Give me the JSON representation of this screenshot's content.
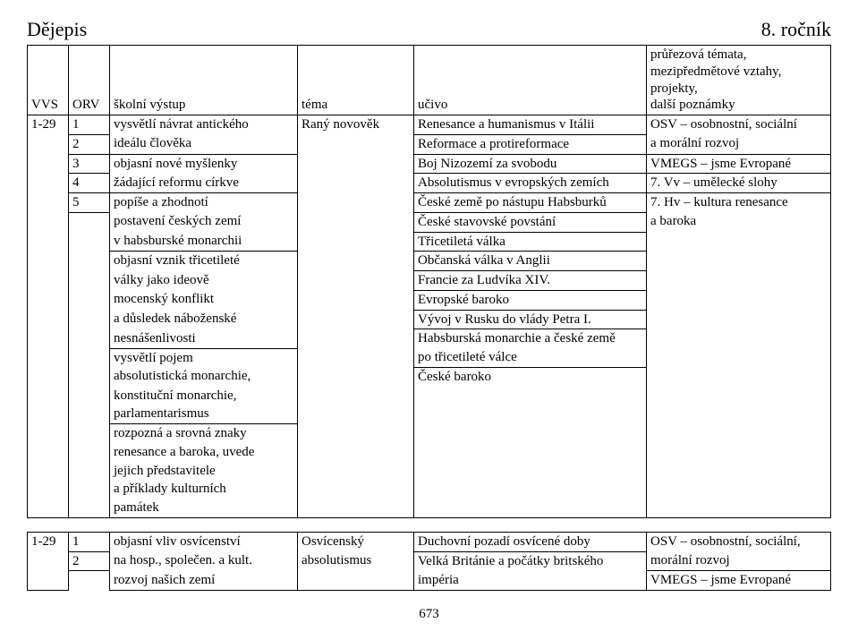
{
  "page": {
    "title_left": "Dějepis",
    "title_right": "8. ročník",
    "page_number": "673"
  },
  "head": {
    "vvs": "VVS",
    "orv": "ORV",
    "vystup": "školní výstup",
    "tema": "téma",
    "ucivo": "učivo",
    "pozn_lines": [
      "průřezová témata,",
      "mezipředmětové vztahy,",
      "projekty,",
      "další poznámky"
    ]
  },
  "s1": {
    "vvs0": "1-29",
    "orv": {
      "r0": "1",
      "r1": "2",
      "r2": "3",
      "r3": "4",
      "r4": "5"
    },
    "vystup": {
      "r0": "vysvětlí návrat antického",
      "r1": "ideálu člověka",
      "r2": "objasní nové myšlenky",
      "r3": "žádající reformu církve",
      "r4": "popíše a zhodnotí",
      "r5": "postavení českých zemí",
      "r6": "v habsburské monarchii",
      "r7": "objasní vznik třicetileté",
      "r8": "války jako ideově",
      "r9": "mocenský konflikt",
      "r10": "a důsledek náboženské",
      "r11": "nesnášenlivosti",
      "r12": "vysvětlí pojem",
      "r13": "absolutistická monarchie,",
      "r14": "konstituční monarchie,",
      "r15": "parlamentarismus",
      "r16": "rozpozná a srovná znaky",
      "r17": "renesance a baroka, uvede",
      "r18": "jejich představitele",
      "r19": "a příklady kulturních",
      "r20": "památek"
    },
    "tema": {
      "r0": "Raný novověk"
    },
    "ucivo": {
      "r0": "Renesance a humanismus v Itálii",
      "r1": "Reformace a protireformace",
      "r2": "Boj Nizozemí za svobodu",
      "r3": "Absolutismus v evropských zemích",
      "r4": "České země po nástupu Habsburků",
      "r5": "České stavovské povstání",
      "r6": "Třicetiletá válka",
      "r7": "Občanská válka v Anglii",
      "r8": "Francie za Ludvíka XIV.",
      "r9": "Evropské baroko",
      "r10": "Vývoj v Rusku do vlády Petra I.",
      "r11": "Habsburská monarchie a české země",
      "r12": "po třicetileté válce",
      "r13": "České baroko"
    },
    "pozn": {
      "r0": "OSV – osobnostní, sociální",
      "r1": "a morální rozvoj",
      "r2": "VMEGS – jsme Evropané",
      "r3": "7. Vv – umělecké slohy",
      "r4": "7. Hv – kultura renesance",
      "r5": "a baroka"
    }
  },
  "s2": {
    "vvs0": "1-29",
    "orv": {
      "r0": "1",
      "r1": "2"
    },
    "vystup": {
      "r0": "objasní vliv osvícenství",
      "r1": "na hosp., společen. a kult.",
      "r2": "rozvoj našich zemí"
    },
    "tema": {
      "r0": "Osvícenský",
      "r1": "absolutismus"
    },
    "ucivo": {
      "r0": "Duchovní pozadí osvícené doby",
      "r1": "Velká Británie a počátky britského",
      "r2": "impéria"
    },
    "pozn": {
      "r0": "OSV – osobnostní, sociální,",
      "r1": "morální rozvoj",
      "r2": "VMEGS – jsme Evropané"
    }
  }
}
